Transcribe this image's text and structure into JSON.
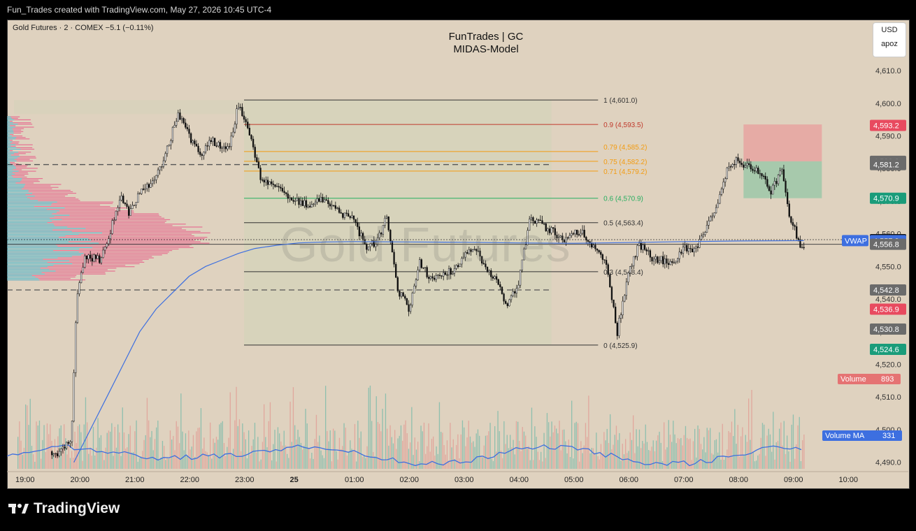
{
  "header": {
    "created_by": "Fun_Trades created with TradingView.com, May 27, 2026 10:45 UTC-4"
  },
  "symbol": {
    "info": "Gold Futures · 2 · COMEX  −5.1 (−0.11%)"
  },
  "title": {
    "line1": "FunTrades | GC",
    "line2": "MIDAS-Model"
  },
  "currency": {
    "label": "USD",
    "sub": "apoz"
  },
  "watermark": "Gold Futures",
  "footer": {
    "logo_text": "TradingView"
  },
  "colors": {
    "background": "#dfd2bf",
    "vwap": "#3d6fe0",
    "volume_ma": "#3d6fe0",
    "fib_red": "#c0392b",
    "fib_orange": "#f39c12",
    "fib_green": "#27ae60",
    "up_volume": "#2ea89a",
    "down_volume": "#e57373",
    "profile_pink": "#e8608a",
    "profile_cyan": "#4cc9d4"
  },
  "chart_data": {
    "type": "line",
    "title": "FunTrades | GC",
    "subtitle": "MIDAS-Model",
    "ylim": [
      4488,
      4616
    ],
    "price_ticks": [
      4490,
      4500,
      4510,
      4520,
      4530,
      4540,
      4550,
      4560,
      4570,
      4580,
      4590,
      4600,
      4610
    ],
    "price_tick_labels": [
      "4,490.0",
      "4,500.0",
      "4,510.0",
      "4,520.0",
      "4,530.0",
      "4,540.0",
      "4,550.0",
      "4,560.0",
      "4,570.0",
      "4,580.0",
      "4,590.0",
      "4,600.0",
      "4,610.0"
    ],
    "time_labels": [
      "19:00",
      "20:00",
      "21:00",
      "22:00",
      "23:00",
      "25",
      "01:00",
      "02:00",
      "03:00",
      "04:00",
      "05:00",
      "06:00",
      "07:00",
      "08:00",
      "09:00",
      "10:00"
    ],
    "fib_levels": [
      {
        "label": "1 (4,601.0)",
        "value": 4601.0,
        "color": "#333333"
      },
      {
        "label": "0.9 (4,593.5)",
        "value": 4593.5,
        "color": "#c0392b"
      },
      {
        "label": "0.79 (4,585.2)",
        "value": 4585.2,
        "color": "#f39c12"
      },
      {
        "label": "0.75 (4,582.2)",
        "value": 4582.2,
        "color": "#f39c12"
      },
      {
        "label": "0.71 (4,579.2)",
        "value": 4579.2,
        "color": "#f39c12"
      },
      {
        "label": "0.6 (4,570.9)",
        "value": 4570.9,
        "color": "#27ae60"
      },
      {
        "label": "0.5 (4,563.4)",
        "value": 4563.4,
        "color": "#333333"
      },
      {
        "label": "0.3 (4,548.4)",
        "value": 4548.4,
        "color": "#333333"
      },
      {
        "label": "0 (4,525.9)",
        "value": 4525.9,
        "color": "#333333"
      }
    ],
    "price_badges": [
      {
        "text": "4,593.2",
        "value": 4593.2,
        "color": "#e84a5f"
      },
      {
        "text": "4,582.2",
        "value": 4582.2,
        "color": "#6b6b6b"
      },
      {
        "text": "4,581.2",
        "value": 4581.2,
        "color": "#6b6b6b"
      },
      {
        "text": "4,570.9",
        "value": 4570.9,
        "color": "#1a9c7a"
      },
      {
        "text": "4,558.2",
        "value": 4558.2,
        "color": "#111111"
      },
      {
        "text": "4,557.9",
        "value": 4557.9,
        "color": "#3d6fe0"
      },
      {
        "text": "4,556.8",
        "value": 4556.8,
        "color": "#6b6b6b"
      },
      {
        "text": "4,542.8",
        "value": 4542.8,
        "color": "#6b6b6b"
      },
      {
        "text": "4,536.9",
        "value": 4536.9,
        "color": "#e84a5f"
      },
      {
        "text": "4,530.8",
        "value": 4530.8,
        "color": "#6b6b6b"
      },
      {
        "text": "4,524.6",
        "value": 4524.6,
        "color": "#1a9c7a"
      }
    ],
    "vwap_label": "VWAP",
    "volume": {
      "label": "Volume",
      "value": "893"
    },
    "volume_ma": {
      "label": "Volume MA",
      "value": "331"
    },
    "price_series": {
      "name": "",
      "x_hours": [
        0,
        0.3,
        0.6,
        0.85,
        0.95,
        1.1,
        1.4,
        1.6,
        1.75,
        1.9,
        2.1,
        2.4,
        2.6,
        2.8,
        3.0,
        3.2,
        3.4,
        3.6,
        3.75,
        3.9,
        4.1,
        4.3,
        4.5,
        4.8,
        5.0,
        5.2,
        5.4,
        5.6,
        5.8,
        6.0,
        6.2,
        6.4,
        6.6,
        6.8,
        7.0,
        7.2,
        7.4,
        7.6,
        7.8,
        8.0,
        8.2,
        8.4,
        8.6,
        8.8,
        9.0,
        9.2,
        9.4,
        9.6,
        9.8,
        10.0,
        10.2,
        10.4,
        10.6,
        10.8,
        11.0,
        11.2,
        11.4,
        11.6,
        11.8,
        12.0,
        12.2,
        12.4,
        12.6,
        12.8,
        13.0,
        13.2,
        13.4,
        13.6,
        13.8,
        13.9,
        14.0,
        14.1,
        14.2
      ],
      "values": [
        4490,
        4494,
        4493,
        4496,
        4540,
        4553,
        4552,
        4563,
        4571,
        4566,
        4573,
        4577,
        4586,
        4597,
        4590,
        4584,
        4589,
        4586,
        4588,
        4600,
        4591,
        4577,
        4575,
        4572,
        4570,
        4569,
        4571,
        4568,
        4566,
        4565,
        4556,
        4557,
        4565,
        4543,
        4537,
        4551,
        4546,
        4547,
        4549,
        4553,
        4556,
        4550,
        4545,
        4538,
        4545,
        4564,
        4563,
        4561,
        4558,
        4560,
        4560,
        4555,
        4550,
        4530,
        4548,
        4557,
        4553,
        4552,
        4551,
        4556,
        4555,
        4561,
        4567,
        4580,
        4583,
        4580,
        4579,
        4573,
        4580,
        4568,
        4563,
        4557,
        4556
      ]
    },
    "vwap_values": [
      4490,
      4500,
      4510,
      4520,
      4530,
      4537,
      4542,
      4547,
      4550,
      4552,
      4554,
      4555.5,
      4556.5,
      4557.2,
      4557.5,
      4557.6,
      4557.5,
      4557.4,
      4557.2,
      4557.1,
      4557.3,
      4557.6,
      4557.8,
      4557.9
    ],
    "vwap_x_hours": [
      0.9,
      1.2,
      1.5,
      1.8,
      2.1,
      2.4,
      2.7,
      3.0,
      3.3,
      3.6,
      3.9,
      4.2,
      4.6,
      5.0,
      5.5,
      6.0,
      7.0,
      8.0,
      9.0,
      10.0,
      11.0,
      12.0,
      13.0,
      14.2
    ]
  }
}
